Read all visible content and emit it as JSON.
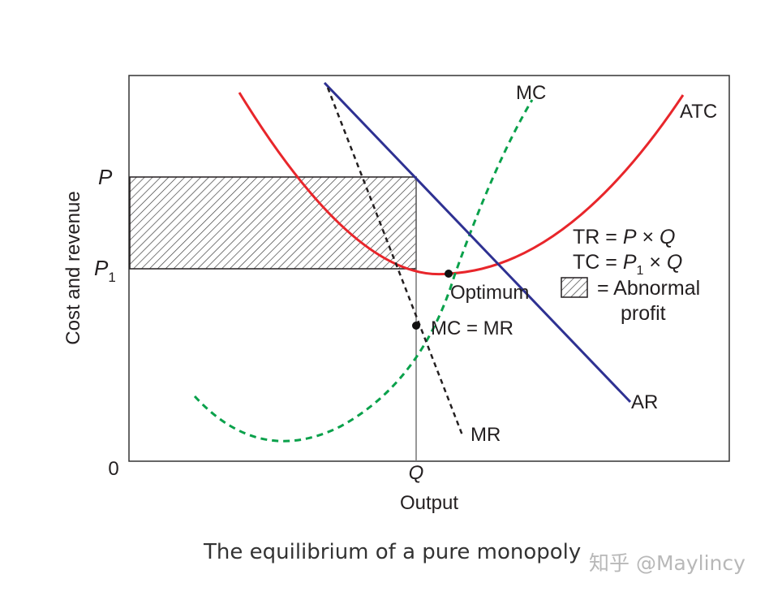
{
  "figure": {
    "y_axis_label": "Cost and revenue",
    "x_axis_label": "Output",
    "origin_label": "0",
    "price_label": "P",
    "cost_label_base": "P",
    "cost_label_sub": "1",
    "quantity_label": "Q",
    "curves": {
      "mc": "MC",
      "atc": "ATC",
      "ar": "AR",
      "mr": "MR"
    },
    "points": {
      "optimum": "Optimum",
      "equilibrium": "MC = MR"
    },
    "legend": {
      "tr_prefix": "TR = ",
      "tr_var1": "P",
      "tr_op": " × ",
      "tr_var2": "Q",
      "tc_prefix": "TC = ",
      "tc_var1": "P",
      "tc_sub": "1",
      "tc_op": " × ",
      "tc_var2": "Q",
      "profit_line1": "= Abnormal",
      "profit_line2": "profit"
    },
    "colors": {
      "atc": "#e8262b",
      "mc": "#0aa14b",
      "ar": "#2e3192",
      "mr": "#231f20"
    }
  },
  "caption": "The equilibrium of a pure monopoly",
  "watermark": "知乎 @Maylincy"
}
